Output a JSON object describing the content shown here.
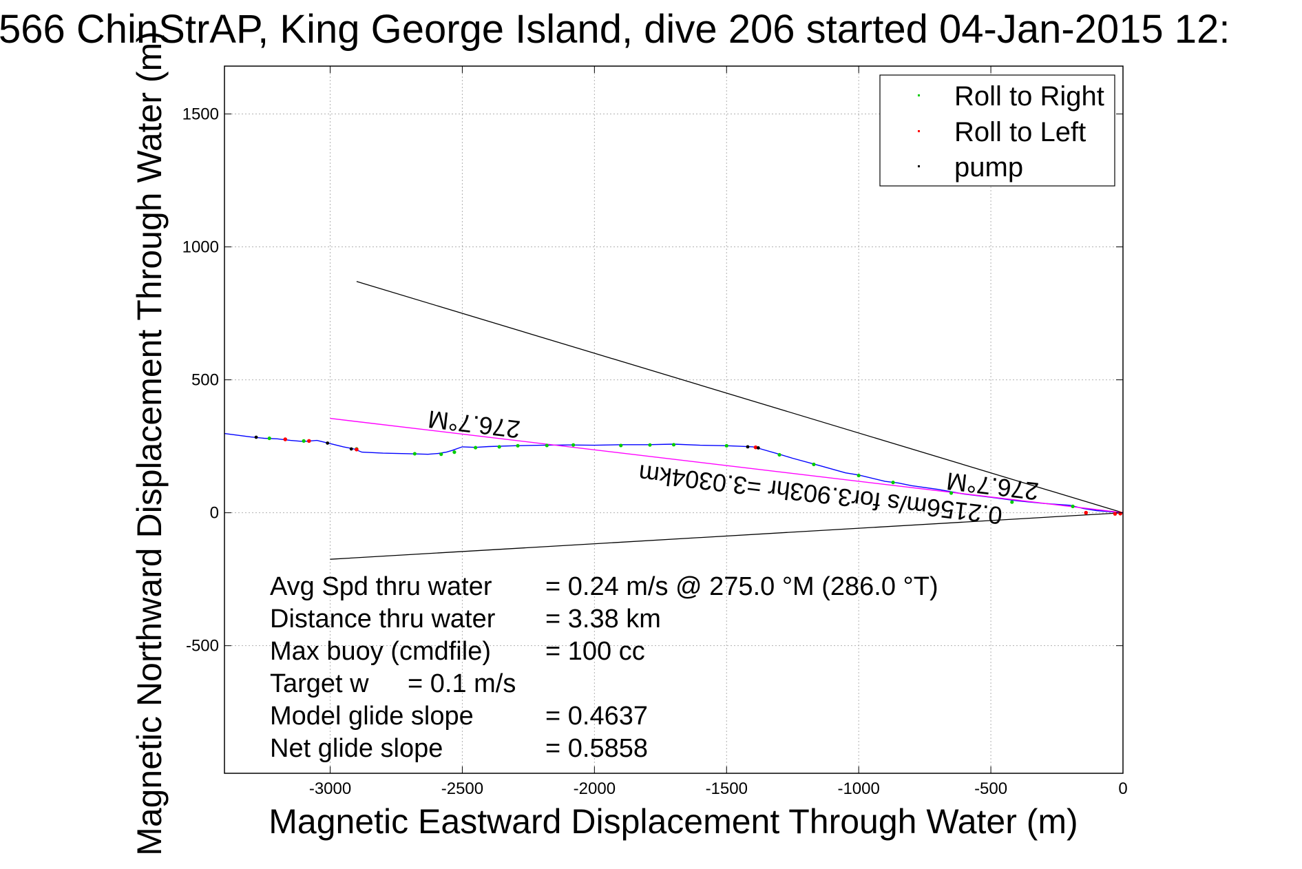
{
  "chart_data": {
    "type": "line",
    "title": "566 ChinStrAP, King George Island, dive 206 started 04-Jan-2015 12:",
    "xlabel": "Magnetic Eastward Displacement Through Water (m)",
    "ylabel": "Magnetic Northward Displacement Through Water (m)",
    "xlim": [
      -3400,
      0
    ],
    "ylim": [
      -980,
      1680
    ],
    "xticks": [
      -3000,
      -2500,
      -2000,
      -1500,
      -1000,
      -500,
      0
    ],
    "yticks": [
      -500,
      0,
      500,
      1000,
      1500
    ],
    "grid": true,
    "legend": {
      "placement": "top-right",
      "entries": [
        {
          "label": "Roll to Right",
          "color": "#00cc00"
        },
        {
          "label": "Roll to Left",
          "color": "#ff0000"
        },
        {
          "label": "pump",
          "color": "#000000"
        }
      ]
    },
    "series": [
      {
        "color": "#0000ff",
        "x": [
          -3400,
          -3300,
          -3250,
          -3200,
          -3150,
          -3100,
          -3050,
          -3000,
          -2950,
          -2910,
          -2880,
          -2800,
          -2700,
          -2630,
          -2590,
          -2560,
          -2540,
          -2500,
          -2450,
          -2400,
          -2300,
          -2200,
          -2100,
          -2000,
          -1900,
          -1800,
          -1700,
          -1600,
          -1500,
          -1450,
          -1400,
          -1370,
          -1300,
          -1250,
          -1150,
          -1050,
          -1000,
          -900,
          -850,
          -800,
          -700,
          -600,
          -500,
          -400,
          -300,
          -200,
          -150,
          -100,
          -50,
          0
        ],
        "y": [
          298,
          285,
          280,
          278,
          272,
          268,
          272,
          260,
          248,
          240,
          228,
          224,
          222,
          220,
          223,
          228,
          234,
          248,
          246,
          249,
          252,
          254,
          255,
          254,
          256,
          256,
          258,
          254,
          252,
          250,
          248,
          240,
          220,
          205,
          178,
          150,
          142,
          118,
          112,
          102,
          88,
          70,
          58,
          45,
          35,
          28,
          16,
          8,
          4,
          0
        ]
      },
      {
        "color": "#ff00ff",
        "x": [
          -3000,
          0
        ],
        "y": [
          355,
          0
        ]
      }
    ],
    "roll_right_points": {
      "x": [
        -3230,
        -3100,
        -2900,
        -2680,
        -2580,
        -2530,
        -2450,
        -2360,
        -2290,
        -2180,
        -2080,
        -1900,
        -1790,
        -1700,
        -1500,
        -1300,
        -1170,
        -1000,
        -870,
        -650,
        -420,
        -190
      ],
      "y": [
        280,
        270,
        240,
        222,
        220,
        228,
        245,
        248,
        252,
        253,
        255,
        253,
        255,
        256,
        252,
        218,
        182,
        140,
        114,
        74,
        40,
        24
      ]
    },
    "roll_left_points": {
      "x": [
        -3170,
        -3080,
        -2900,
        -1390,
        -140,
        -30,
        -10
      ],
      "y": [
        276,
        270,
        238,
        246,
        0,
        -4,
        -3
      ]
    },
    "pump_points": {
      "x": [
        -3280,
        -3010,
        -2920,
        -1420,
        -1380
      ],
      "y": [
        284,
        262,
        240,
        248,
        244
      ]
    },
    "reference_lines": [
      {
        "color": "#000000",
        "x": [
          -2900,
          0
        ],
        "y": [
          870,
          0
        ]
      },
      {
        "color": "#000000",
        "x": [
          -3000,
          0
        ],
        "y": [
          -175,
          0
        ]
      }
    ],
    "annotations": {
      "heading_upper": "276.7°M",
      "heading_lower": "276.7°M",
      "speed_line": "0.2156m/s for3.903hr =3.0304km"
    },
    "stats": [
      {
        "label": "Avg Spd thru water",
        "value": "=  0.24 m/s @ 275.0 °M (286.0 °T)"
      },
      {
        "label": "Distance thru water",
        "value": "=  3.38 km"
      },
      {
        "label": "Max buoy (cmdfile)",
        "value": "= 100 cc"
      },
      {
        "label": "Target w",
        "value": "= 0.1 m/s"
      },
      {
        "label": "Model glide slope",
        "value": "= 0.4637"
      },
      {
        "label": "Net glide slope",
        "value": "= 0.5858"
      }
    ]
  }
}
